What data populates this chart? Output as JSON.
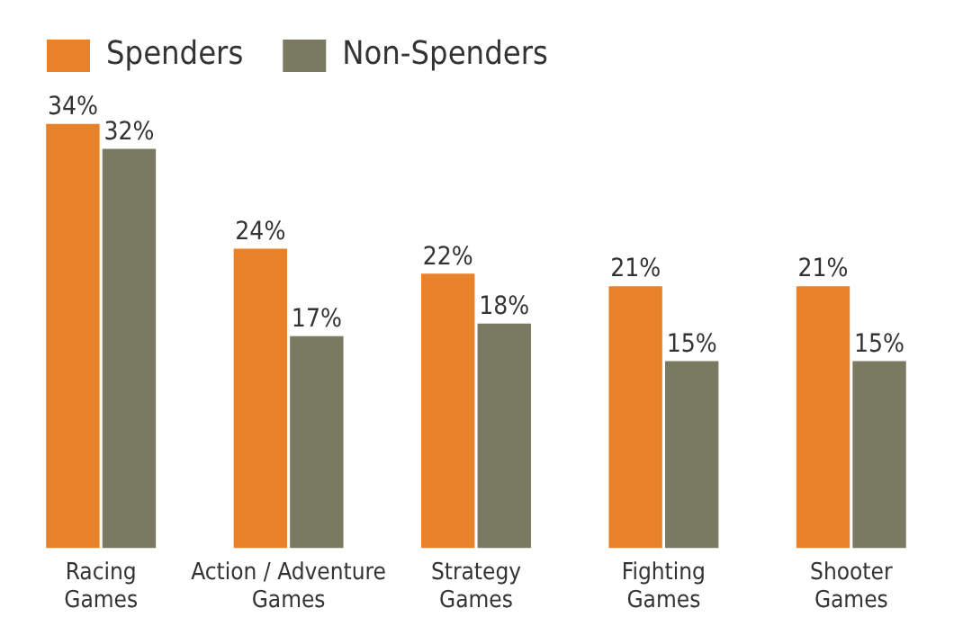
{
  "chart_data": {
    "type": "bar",
    "categories": [
      "Racing Games",
      "Action / Adventure Games",
      "Strategy Games",
      "Fighting Games",
      "Shooter Games"
    ],
    "series": [
      {
        "name": "Spenders",
        "color": "#e8822a",
        "values": [
          34,
          24,
          22,
          21,
          21
        ],
        "value_labels": [
          "34%",
          "24%",
          "22%",
          "21%",
          "21%"
        ]
      },
      {
        "name": "Non-Spenders",
        "color": "#7a7a62",
        "values": [
          32,
          17,
          18,
          15,
          15
        ],
        "value_labels": [
          "32%",
          "17%",
          "18%",
          "15%",
          "15%"
        ]
      }
    ],
    "legend": "top left",
    "grid": false,
    "tick_labels": "x"
  }
}
